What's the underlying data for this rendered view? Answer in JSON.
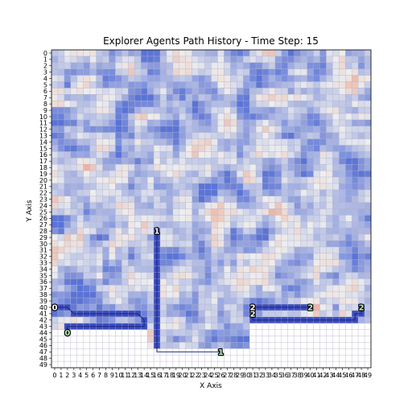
{
  "chart_data": {
    "type": "heatmap",
    "title": "Explorer Agents Path History - Time Step: 15",
    "xlabel": "X Axis",
    "ylabel": "Y Axis",
    "grid": true,
    "x_range": [
      0,
      49
    ],
    "y_range": [
      0,
      49
    ],
    "y_axis_direction": "top-to-bottom",
    "x_ticks": [
      "0",
      "1",
      "2",
      "3",
      "4",
      "5",
      "6",
      "7",
      "8",
      "9",
      "10",
      "11",
      "12",
      "13",
      "14",
      "15",
      "16",
      "17",
      "18",
      "19",
      "20",
      "21",
      "22",
      "23",
      "24",
      "25",
      "26",
      "27",
      "28",
      "29",
      "30",
      "31",
      "32",
      "33",
      "34",
      "35",
      "36",
      "37",
      "38",
      "39",
      "40",
      "41",
      "42",
      "43",
      "44",
      "45",
      "46",
      "47",
      "48",
      "49"
    ],
    "y_ticks": [
      "0",
      "1",
      "2",
      "3",
      "4",
      "5",
      "6",
      "7",
      "8",
      "9",
      "10",
      "11",
      "12",
      "13",
      "14",
      "15",
      "16",
      "17",
      "18",
      "19",
      "20",
      "21",
      "22",
      "23",
      "24",
      "25",
      "26",
      "27",
      "28",
      "29",
      "30",
      "31",
      "32",
      "33",
      "34",
      "35",
      "36",
      "37",
      "38",
      "39",
      "40",
      "41",
      "42",
      "43",
      "44",
      "45",
      "46",
      "47",
      "48",
      "49"
    ],
    "colors": {
      "path_fill": "#3b4cc0",
      "path_edge": "#1a237e",
      "heat_cold": "#5a73d6",
      "heat_mid": "#eeeeee",
      "heat_hot": "#e8866a",
      "grid_line": "#b0b0c8",
      "label_text": "#b8f0b8"
    },
    "unexplored_regions": [
      {
        "x": [
          0,
          14
        ],
        "y": [
          44,
          49
        ]
      },
      {
        "x": [
          31,
          49
        ],
        "y": [
          43,
          49
        ]
      },
      {
        "x": [
          15,
          30
        ],
        "y": [
          47,
          49
        ]
      }
    ],
    "agents": [
      {
        "label": "0",
        "path": [
          [
            0,
            40
          ],
          [
            1,
            40
          ],
          [
            2,
            40
          ],
          [
            3,
            41
          ],
          [
            4,
            41
          ],
          [
            5,
            41
          ],
          [
            6,
            41
          ],
          [
            7,
            41
          ],
          [
            8,
            41
          ],
          [
            9,
            41
          ],
          [
            10,
            41
          ],
          [
            11,
            41
          ],
          [
            12,
            41
          ],
          [
            13,
            41
          ],
          [
            14,
            42
          ],
          [
            14,
            43
          ],
          [
            13,
            43
          ],
          [
            12,
            43
          ],
          [
            11,
            43
          ],
          [
            10,
            43
          ],
          [
            9,
            43
          ],
          [
            8,
            43
          ],
          [
            7,
            43
          ],
          [
            6,
            43
          ],
          [
            5,
            43
          ],
          [
            4,
            43
          ],
          [
            3,
            43
          ],
          [
            2,
            43
          ],
          [
            2,
            44
          ]
        ],
        "current": [
          2,
          44
        ]
      },
      {
        "label": "1",
        "path": [
          [
            16,
            28
          ],
          [
            16,
            29
          ],
          [
            16,
            30
          ],
          [
            16,
            31
          ],
          [
            16,
            32
          ],
          [
            16,
            33
          ],
          [
            16,
            34
          ],
          [
            16,
            35
          ],
          [
            16,
            36
          ],
          [
            16,
            37
          ],
          [
            16,
            38
          ],
          [
            16,
            39
          ],
          [
            16,
            40
          ],
          [
            16,
            41
          ],
          [
            16,
            42
          ],
          [
            16,
            43
          ],
          [
            16,
            44
          ],
          [
            16,
            45
          ],
          [
            16,
            46
          ],
          [
            16,
            47
          ],
          [
            17,
            47
          ],
          [
            18,
            47
          ],
          [
            19,
            47
          ],
          [
            20,
            47
          ],
          [
            21,
            47
          ],
          [
            22,
            47
          ],
          [
            23,
            47
          ],
          [
            24,
            47
          ],
          [
            25,
            47
          ],
          [
            26,
            47
          ]
        ],
        "current": [
          26,
          47
        ]
      },
      {
        "label": "2",
        "path": [
          [
            31,
            41
          ],
          [
            31,
            42
          ],
          [
            32,
            42
          ],
          [
            33,
            42
          ],
          [
            34,
            42
          ],
          [
            35,
            42
          ],
          [
            36,
            42
          ],
          [
            37,
            42
          ],
          [
            38,
            42
          ],
          [
            39,
            42
          ],
          [
            40,
            42
          ],
          [
            41,
            42
          ],
          [
            42,
            42
          ],
          [
            43,
            42
          ],
          [
            44,
            42
          ],
          [
            45,
            42
          ],
          [
            46,
            42
          ],
          [
            47,
            42
          ],
          [
            47,
            41
          ],
          [
            48,
            41
          ],
          [
            48,
            40
          ]
        ],
        "current": [
          48,
          40
        ]
      },
      {
        "label": "2",
        "path": [
          [
            31,
            40
          ],
          [
            32,
            40
          ],
          [
            33,
            40
          ],
          [
            34,
            40
          ],
          [
            35,
            40
          ],
          [
            36,
            40
          ],
          [
            37,
            40
          ],
          [
            38,
            40
          ],
          [
            39,
            40
          ],
          [
            40,
            40
          ]
        ],
        "current": [
          40,
          40
        ]
      }
    ]
  }
}
